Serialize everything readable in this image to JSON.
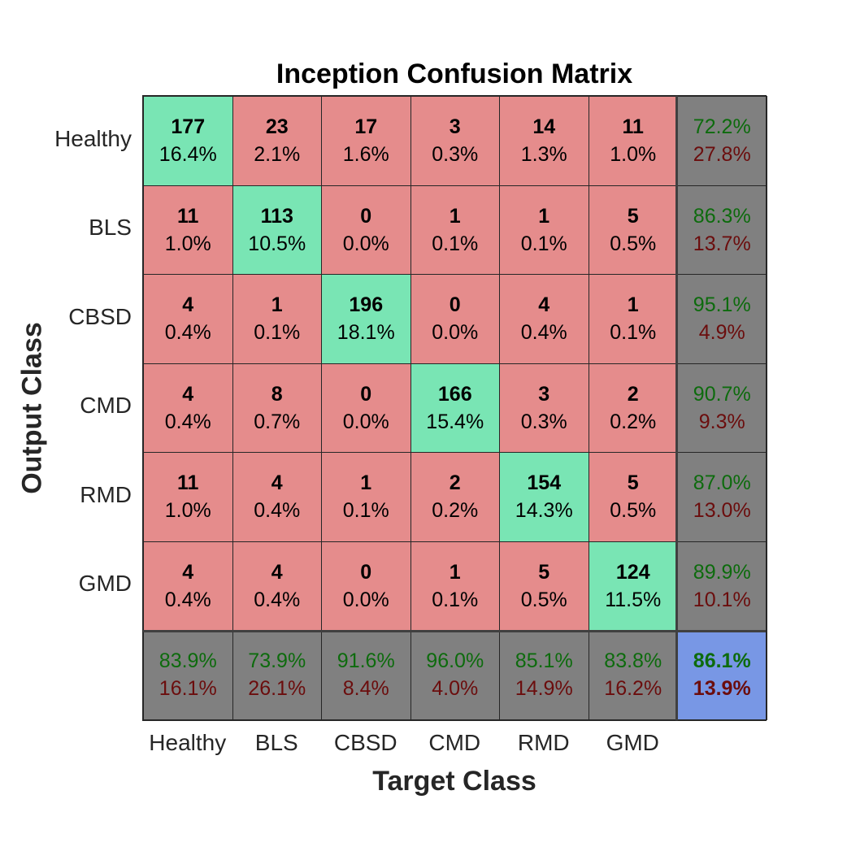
{
  "chart_data": {
    "type": "heatmap",
    "title": "Inception Confusion Matrix",
    "xlabel": "Target Class",
    "ylabel": "Output Class",
    "x_categories": [
      "Healthy",
      "BLS",
      "CBSD",
      "CMD",
      "RMD",
      "GMD"
    ],
    "y_categories": [
      "Healthy",
      "BLS",
      "CBSD",
      "CMD",
      "RMD",
      "GMD"
    ],
    "counts": [
      [
        177,
        23,
        17,
        3,
        14,
        11
      ],
      [
        11,
        113,
        0,
        1,
        1,
        5
      ],
      [
        4,
        1,
        196,
        0,
        4,
        1
      ],
      [
        4,
        8,
        0,
        166,
        3,
        2
      ],
      [
        11,
        4,
        1,
        2,
        154,
        5
      ],
      [
        4,
        4,
        0,
        1,
        5,
        124
      ]
    ],
    "percentages": [
      [
        "16.4%",
        "2.1%",
        "1.6%",
        "0.3%",
        "1.3%",
        "1.0%"
      ],
      [
        "1.0%",
        "10.5%",
        "0.0%",
        "0.1%",
        "0.1%",
        "0.5%"
      ],
      [
        "0.4%",
        "0.1%",
        "18.1%",
        "0.0%",
        "0.4%",
        "0.1%"
      ],
      [
        "0.4%",
        "0.7%",
        "0.0%",
        "15.4%",
        "0.3%",
        "0.2%"
      ],
      [
        "1.0%",
        "0.4%",
        "0.1%",
        "0.2%",
        "14.3%",
        "0.5%"
      ],
      [
        "0.4%",
        "0.4%",
        "0.0%",
        "0.1%",
        "0.5%",
        "11.5%"
      ]
    ],
    "row_summary": [
      [
        "72.2%",
        "27.8%"
      ],
      [
        "86.3%",
        "13.7%"
      ],
      [
        "95.1%",
        "4.9%"
      ],
      [
        "90.7%",
        "9.3%"
      ],
      [
        "87.0%",
        "13.0%"
      ],
      [
        "89.9%",
        "10.1%"
      ]
    ],
    "col_summary": [
      [
        "83.9%",
        "16.1%"
      ],
      [
        "73.9%",
        "26.1%"
      ],
      [
        "91.6%",
        "8.4%"
      ],
      [
        "96.0%",
        "4.0%"
      ],
      [
        "85.1%",
        "14.9%"
      ],
      [
        "83.8%",
        "16.2%"
      ]
    ],
    "total": [
      "86.1%",
      "13.9%"
    ],
    "colors": {
      "correct": "#79e5b4",
      "incorrect": "#e58c8c",
      "summary": "#808080",
      "total": "#7897e5",
      "good_text": "#0d6b0d",
      "bad_text": "#6b0d0d"
    }
  }
}
